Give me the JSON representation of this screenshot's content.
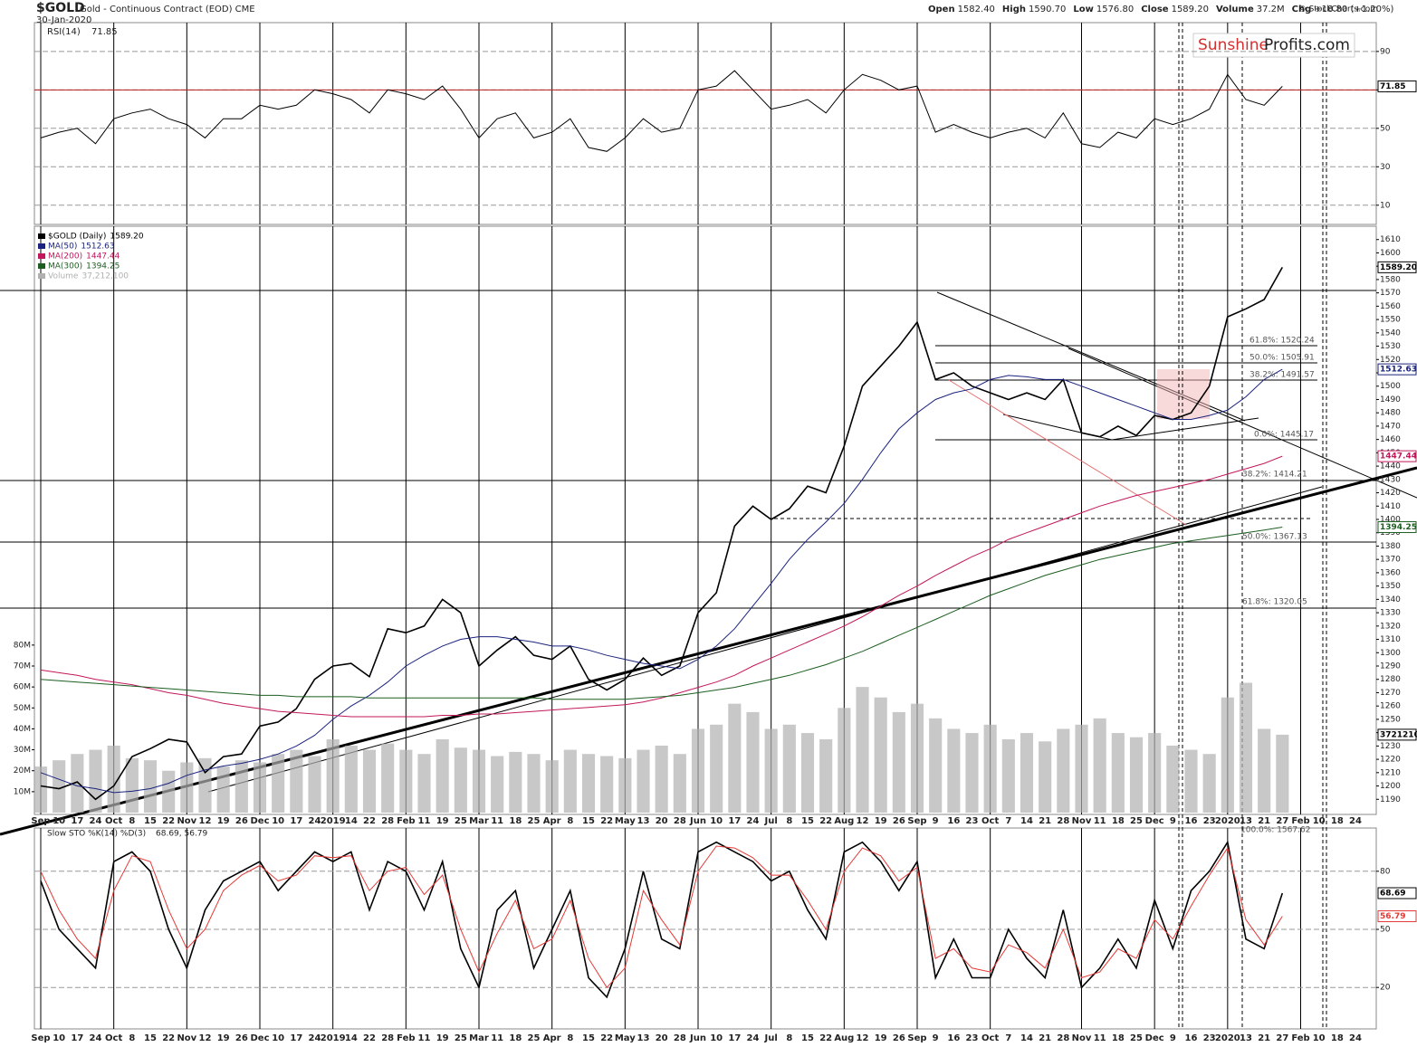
{
  "chart_data": {
    "type": "stock",
    "title": "$GOLD",
    "subtitle": "Gold - Continuous Contract (EOD) CME",
    "date": "30-Jan-2020",
    "quote": [
      {
        "label": "Open",
        "value": "1582.40"
      },
      {
        "label": "High",
        "value": "1590.70"
      },
      {
        "label": "Low",
        "value": "1576.80"
      },
      {
        "label": "Close",
        "value": "1589.20"
      },
      {
        "label": "Volume",
        "value": "37.2M"
      },
      {
        "label": "Chg",
        "value": "+18.80 (+1.20%)"
      }
    ],
    "logo": [
      "Sunshine",
      "Profits.com"
    ],
    "source": "© StockCharts.com",
    "categories": [
      "Sep",
      "10",
      "17",
      "24",
      "Oct",
      "8",
      "15",
      "22",
      "Nov",
      "12",
      "19",
      "26",
      "Dec",
      "10",
      "17",
      "24",
      "2019",
      "14",
      "22",
      "28",
      "Feb",
      "11",
      "19",
      "25",
      "Mar",
      "11",
      "18",
      "25",
      "Apr",
      "8",
      "15",
      "22",
      "May",
      "13",
      "20",
      "28",
      "Jun",
      "10",
      "17",
      "24",
      "Jul",
      "8",
      "15",
      "22",
      "Aug",
      "12",
      "19",
      "26",
      "Sep",
      "9",
      "16",
      "23",
      "Oct",
      "7",
      "14",
      "21",
      "28",
      "Nov",
      "11",
      "18",
      "25",
      "Dec",
      "9",
      "16",
      "23",
      "2020",
      "13",
      "21",
      "27",
      "Feb",
      "10",
      "18",
      "24"
    ],
    "ylim": [
      1180,
      1620
    ],
    "yticks": [
      1190,
      1200,
      1210,
      1220,
      1230,
      1240,
      1250,
      1260,
      1270,
      1280,
      1290,
      1300,
      1310,
      1320,
      1330,
      1340,
      1350,
      1360,
      1370,
      1380,
      1390,
      1400,
      1410,
      1420,
      1430,
      1440,
      1450,
      1460,
      1470,
      1480,
      1490,
      1500,
      1510,
      1520,
      1530,
      1540,
      1550,
      1560,
      1570,
      1580,
      1590,
      1600,
      1610
    ],
    "y2lim": [
      0,
      280000000
    ],
    "y2ticks": [
      {
        "value": 10000000,
        "label": "10M"
      },
      {
        "value": 20000000,
        "label": "20M"
      },
      {
        "value": 30000000,
        "label": "30M"
      },
      {
        "value": 40000000,
        "label": "40M"
      },
      {
        "value": 50000000,
        "label": "50M"
      },
      {
        "value": 60000000,
        "label": "60M"
      },
      {
        "value": 70000000,
        "label": "70M"
      },
      {
        "value": 80000000,
        "label": "80M"
      }
    ],
    "series": [
      {
        "name": "$GOLD (Daily)",
        "legend_value": "1589.20",
        "color": "#000000",
        "values": [
          1200,
          1198,
          1203,
          1190,
          1200,
          1222,
          1228,
          1235,
          1233,
          1210,
          1222,
          1224,
          1245,
          1248,
          1258,
          1280,
          1290,
          1292,
          1282,
          1318,
          1315,
          1320,
          1340,
          1330,
          1290,
          1302,
          1312,
          1298,
          1295,
          1305,
          1280,
          1272,
          1280,
          1296,
          1283,
          1290,
          1330,
          1345,
          1395,
          1410,
          1400,
          1408,
          1425,
          1420,
          1455,
          1500,
          1515,
          1530,
          1548,
          1505,
          1510,
          1500,
          1495,
          1490,
          1495,
          1490,
          1505,
          1465,
          1462,
          1470,
          1463,
          1478,
          1475,
          1480,
          1500,
          1552,
          1558,
          1565,
          1589.2,
          null,
          null,
          null,
          null
        ]
      },
      {
        "name": "MA(50)",
        "legend_value": "1512.63",
        "color": "#1a237e",
        "values": [
          1210,
          1205,
          1200,
          1198,
          1195,
          1196,
          1198,
          1202,
          1208,
          1212,
          1215,
          1217,
          1220,
          1224,
          1230,
          1238,
          1250,
          1260,
          1268,
          1278,
          1290,
          1298,
          1305,
          1310,
          1312,
          1312,
          1310,
          1308,
          1305,
          1305,
          1302,
          1298,
          1295,
          1292,
          1290,
          1288,
          1295,
          1305,
          1318,
          1335,
          1352,
          1370,
          1385,
          1398,
          1412,
          1430,
          1450,
          1468,
          1480,
          1490,
          1495,
          1498,
          1505,
          1508,
          1507,
          1505,
          1505,
          1500,
          1495,
          1490,
          1485,
          1480,
          1475,
          1475,
          1478,
          1482,
          1492,
          1505,
          1512.63,
          null,
          null,
          null,
          null
        ]
      },
      {
        "name": "MA(200)",
        "legend_value": "1447.44",
        "color": "#c2185b",
        "values": [
          1287,
          1285,
          1283,
          1280,
          1278,
          1276,
          1273,
          1270,
          1268,
          1265,
          1262,
          1260,
          1258,
          1256,
          1255,
          1254,
          1253,
          1252,
          1252,
          1252,
          1252,
          1252,
          1253,
          1253,
          1254,
          1254,
          1255,
          1256,
          1257,
          1258,
          1259,
          1260,
          1261,
          1263,
          1266,
          1270,
          1274,
          1278,
          1283,
          1290,
          1296,
          1302,
          1308,
          1314,
          1320,
          1327,
          1335,
          1343,
          1350,
          1358,
          1365,
          1372,
          1378,
          1385,
          1390,
          1395,
          1400,
          1405,
          1410,
          1414,
          1418,
          1421,
          1424,
          1427,
          1430,
          1434,
          1438,
          1442,
          1447.44,
          null,
          null,
          null,
          null
        ]
      },
      {
        "name": "MA(300)",
        "legend_value": "1394.25",
        "color": "#1b5e20",
        "values": [
          1280,
          1279,
          1278,
          1277,
          1276,
          1275,
          1274,
          1273,
          1272,
          1271,
          1270,
          1269,
          1268,
          1268,
          1267,
          1267,
          1267,
          1267,
          1266,
          1266,
          1266,
          1266,
          1266,
          1266,
          1266,
          1266,
          1266,
          1266,
          1265,
          1265,
          1265,
          1265,
          1265,
          1266,
          1267,
          1268,
          1270,
          1272,
          1274,
          1277,
          1280,
          1283,
          1287,
          1291,
          1296,
          1301,
          1307,
          1313,
          1319,
          1325,
          1331,
          1337,
          1343,
          1348,
          1353,
          1358,
          1362,
          1366,
          1370,
          1373,
          1376,
          1379,
          1382,
          1384,
          1386,
          1388,
          1390,
          1392,
          1394.25,
          null,
          null,
          null,
          null
        ]
      },
      {
        "name": "Volume",
        "legend_value": "37,212,100",
        "tag": "37212100",
        "axis": "y2",
        "color": "#b0b0b0",
        "values": [
          22000000,
          25000000,
          28000000,
          30000000,
          32000000,
          26000000,
          25000000,
          20000000,
          24000000,
          26000000,
          22000000,
          25000000,
          24000000,
          28000000,
          30000000,
          27000000,
          35000000,
          32000000,
          30000000,
          33000000,
          30000000,
          28000000,
          35000000,
          31000000,
          30000000,
          27000000,
          29000000,
          28000000,
          25000000,
          30000000,
          28000000,
          27000000,
          26000000,
          30000000,
          32000000,
          28000000,
          40000000,
          42000000,
          52000000,
          48000000,
          40000000,
          42000000,
          38000000,
          35000000,
          50000000,
          60000000,
          55000000,
          48000000,
          52000000,
          45000000,
          40000000,
          38000000,
          42000000,
          35000000,
          38000000,
          34000000,
          40000000,
          42000000,
          45000000,
          38000000,
          36000000,
          38000000,
          32000000,
          30000000,
          28000000,
          55000000,
          62000000,
          40000000,
          37212100,
          null,
          null,
          null,
          null
        ]
      }
    ],
    "annotations": [
      "61.8%: 1520.24",
      "50.0%: 1505.91",
      "38.2%: 1491.57",
      "0.0%: 1445.17",
      "38.2%: 1414.21",
      "50.0%: 1367.13",
      "61.8%: 1320.05",
      "100.0%: 1567.62"
    ],
    "rsi": {
      "name": "RSI(14)",
      "legend_value": "71.85",
      "ylim": [
        0,
        105
      ],
      "yticks": [
        10,
        30,
        50,
        70,
        90
      ],
      "values": [
        45,
        48,
        50,
        42,
        55,
        58,
        60,
        55,
        52,
        45,
        55,
        55,
        62,
        60,
        62,
        70,
        68,
        65,
        58,
        70,
        68,
        65,
        72,
        60,
        45,
        55,
        58,
        45,
        48,
        55,
        40,
        38,
        45,
        55,
        48,
        50,
        70,
        72,
        80,
        70,
        60,
        62,
        65,
        58,
        70,
        78,
        75,
        70,
        72,
        48,
        52,
        48,
        45,
        48,
        50,
        45,
        58,
        42,
        40,
        48,
        45,
        55,
        52,
        55,
        60,
        78,
        65,
        62,
        71.85,
        null,
        null,
        null,
        null
      ]
    },
    "stoch": {
      "name": "Slow STO %K(14) %D(3)",
      "legend_value": "68.69, 56.79",
      "ylim": [
        0,
        100
      ],
      "yticks": [
        20,
        50,
        80
      ],
      "series": [
        {
          "name": "%K",
          "tag": "68.69",
          "color": "#000000",
          "values": [
            75,
            50,
            40,
            30,
            85,
            90,
            80,
            50,
            30,
            60,
            75,
            80,
            85,
            70,
            80,
            90,
            85,
            90,
            60,
            85,
            80,
            60,
            85,
            40,
            20,
            60,
            70,
            30,
            50,
            70,
            25,
            15,
            40,
            80,
            45,
            40,
            90,
            95,
            90,
            85,
            75,
            80,
            60,
            45,
            90,
            95,
            85,
            70,
            85,
            25,
            45,
            25,
            25,
            50,
            35,
            25,
            60,
            20,
            30,
            45,
            30,
            65,
            40,
            70,
            80,
            95,
            45,
            40,
            68.69,
            null,
            null,
            null,
            null
          ]
        },
        {
          "name": "%D",
          "tag": "56.79",
          "color": "#e53935",
          "values": [
            80,
            60,
            45,
            35,
            70,
            88,
            85,
            60,
            40,
            50,
            70,
            78,
            83,
            75,
            78,
            88,
            87,
            88,
            70,
            80,
            82,
            68,
            78,
            50,
            28,
            48,
            65,
            40,
            45,
            65,
            35,
            20,
            30,
            70,
            55,
            42,
            80,
            93,
            92,
            87,
            78,
            78,
            65,
            50,
            80,
            92,
            88,
            75,
            82,
            35,
            40,
            30,
            28,
            42,
            38,
            30,
            50,
            25,
            28,
            40,
            35,
            55,
            45,
            62,
            78,
            92,
            55,
            42,
            56.79,
            null,
            null,
            null,
            null
          ]
        }
      ]
    }
  }
}
